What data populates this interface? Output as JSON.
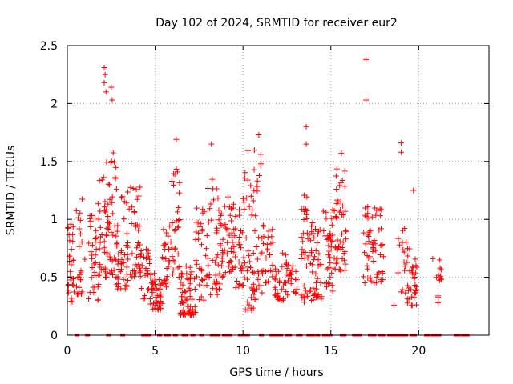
{
  "chart_data": {
    "type": "scatter",
    "title": "Day 102 of 2024, SRMTID for receiver eur2",
    "xlabel": "GPS time / hours",
    "ylabel": "SRMTID / TECUs",
    "xlim": [
      0,
      24
    ],
    "ylim": [
      0,
      2.5
    ],
    "xticks": [
      0,
      5,
      10,
      15,
      20
    ],
    "yticks": [
      0,
      0.5,
      1,
      1.5,
      2,
      2.5
    ],
    "xtick_labels": [
      "0",
      "5",
      "10",
      "15",
      "20"
    ],
    "ytick_labels": [
      "0",
      "0.5",
      "1",
      "1.5",
      "2",
      "2.5"
    ],
    "grid": true,
    "marker": "+",
    "series_color": "#ff0000",
    "highlights": [
      {
        "x": 17.0,
        "y": 2.38
      },
      {
        "x": 17.0,
        "y": 2.03
      },
      {
        "x": 2.1,
        "y": 2.31
      },
      {
        "x": 2.15,
        "y": 2.25
      },
      {
        "x": 2.1,
        "y": 2.18
      },
      {
        "x": 2.2,
        "y": 2.1
      },
      {
        "x": 2.5,
        "y": 2.14
      },
      {
        "x": 2.55,
        "y": 2.03
      },
      {
        "x": 13.6,
        "y": 1.8
      },
      {
        "x": 13.6,
        "y": 1.65
      },
      {
        "x": 19.0,
        "y": 1.66
      },
      {
        "x": 19.0,
        "y": 1.58
      },
      {
        "x": 10.9,
        "y": 1.73
      },
      {
        "x": 8.2,
        "y": 1.65
      },
      {
        "x": 6.2,
        "y": 1.69
      },
      {
        "x": 15.6,
        "y": 1.57
      },
      {
        "x": 19.7,
        "y": 1.25
      },
      {
        "x": 20.8,
        "y": 0.66
      },
      {
        "x": 21.2,
        "y": 0.65
      },
      {
        "x": 18.6,
        "y": 0.26
      }
    ],
    "clusters": [
      {
        "x0": 0.0,
        "x1": 0.4,
        "n": 30,
        "lo": 0.28,
        "hi": 1.0
      },
      {
        "x0": 0.5,
        "x1": 1.0,
        "n": 25,
        "lo": 0.35,
        "hi": 1.2
      },
      {
        "x0": 1.2,
        "x1": 1.8,
        "n": 35,
        "lo": 0.3,
        "hi": 1.05
      },
      {
        "x0": 1.75,
        "x1": 2.3,
        "n": 35,
        "lo": 0.5,
        "hi": 1.5
      },
      {
        "x0": 2.3,
        "x1": 2.8,
        "n": 35,
        "lo": 0.5,
        "hi": 1.75
      },
      {
        "x0": 2.8,
        "x1": 3.5,
        "n": 45,
        "lo": 0.4,
        "hi": 1.25
      },
      {
        "x0": 3.5,
        "x1": 4.2,
        "n": 40,
        "lo": 0.5,
        "hi": 1.3
      },
      {
        "x0": 4.2,
        "x1": 4.7,
        "n": 25,
        "lo": 0.3,
        "hi": 0.75
      },
      {
        "x0": 4.7,
        "x1": 5.4,
        "n": 45,
        "lo": 0.22,
        "hi": 0.55
      },
      {
        "x0": 5.4,
        "x1": 5.9,
        "n": 25,
        "lo": 0.4,
        "hi": 0.95
      },
      {
        "x0": 5.9,
        "x1": 6.4,
        "n": 30,
        "lo": 0.5,
        "hi": 1.45
      },
      {
        "x0": 6.4,
        "x1": 7.3,
        "n": 60,
        "lo": 0.17,
        "hi": 0.6
      },
      {
        "x0": 7.3,
        "x1": 8.0,
        "n": 35,
        "lo": 0.3,
        "hi": 1.1
      },
      {
        "x0": 8.0,
        "x1": 8.7,
        "n": 40,
        "lo": 0.35,
        "hi": 1.35
      },
      {
        "x0": 8.7,
        "x1": 9.4,
        "n": 40,
        "lo": 0.5,
        "hi": 1.2
      },
      {
        "x0": 9.4,
        "x1": 10.1,
        "n": 40,
        "lo": 0.4,
        "hi": 1.25
      },
      {
        "x0": 10.1,
        "x1": 10.6,
        "n": 35,
        "lo": 0.2,
        "hi": 1.6
      },
      {
        "x0": 10.6,
        "x1": 11.2,
        "n": 40,
        "lo": 0.3,
        "hi": 1.6
      },
      {
        "x0": 11.2,
        "x1": 11.8,
        "n": 20,
        "lo": 0.45,
        "hi": 0.95
      },
      {
        "x0": 11.8,
        "x1": 12.6,
        "n": 40,
        "lo": 0.3,
        "hi": 0.72
      },
      {
        "x0": 12.6,
        "x1": 13.3,
        "n": 15,
        "lo": 0.35,
        "hi": 0.6
      },
      {
        "x0": 13.3,
        "x1": 13.8,
        "n": 35,
        "lo": 0.27,
        "hi": 1.3
      },
      {
        "x0": 13.8,
        "x1": 14.5,
        "n": 45,
        "lo": 0.3,
        "hi": 1.0
      },
      {
        "x0": 14.5,
        "x1": 15.2,
        "n": 40,
        "lo": 0.38,
        "hi": 1.1
      },
      {
        "x0": 15.2,
        "x1": 15.9,
        "n": 50,
        "lo": 0.55,
        "hi": 1.45
      },
      {
        "x0": 16.8,
        "x1": 17.3,
        "n": 25,
        "lo": 0.45,
        "hi": 1.2
      },
      {
        "x0": 17.3,
        "x1": 18.0,
        "n": 35,
        "lo": 0.45,
        "hi": 1.1
      },
      {
        "x0": 18.8,
        "x1": 19.3,
        "n": 15,
        "lo": 0.35,
        "hi": 1.0
      },
      {
        "x0": 19.3,
        "x1": 19.9,
        "n": 35,
        "lo": 0.25,
        "hi": 0.75
      },
      {
        "x0": 21.0,
        "x1": 21.3,
        "n": 12,
        "lo": 0.27,
        "hi": 0.6
      }
    ],
    "zero_ranges": [
      [
        0.5,
        0.6
      ],
      [
        1.1,
        1.2
      ],
      [
        2.3,
        2.4
      ],
      [
        3.1,
        3.2
      ],
      [
        4.3,
        4.7
      ],
      [
        5.2,
        5.3
      ],
      [
        5.6,
        5.8
      ],
      [
        6.1,
        6.2
      ],
      [
        6.6,
        6.8
      ],
      [
        7.1,
        7.2
      ],
      [
        7.6,
        7.7
      ],
      [
        8.2,
        8.6
      ],
      [
        8.9,
        9.3
      ],
      [
        9.8,
        10.3
      ],
      [
        11.0,
        11.1
      ],
      [
        11.6,
        12.2
      ],
      [
        12.5,
        12.7
      ],
      [
        13.1,
        13.3
      ],
      [
        13.7,
        14.0
      ],
      [
        14.2,
        14.3
      ],
      [
        14.6,
        15.0
      ],
      [
        15.6,
        15.8
      ],
      [
        16.3,
        16.7
      ],
      [
        17.2,
        17.5
      ],
      [
        17.8,
        18.0
      ],
      [
        18.3,
        18.7
      ],
      [
        18.8,
        19.3
      ],
      [
        19.6,
        19.8
      ],
      [
        20.4,
        20.6
      ],
      [
        20.8,
        21.2
      ],
      [
        22.1,
        22.3
      ],
      [
        22.5,
        22.8
      ]
    ]
  }
}
